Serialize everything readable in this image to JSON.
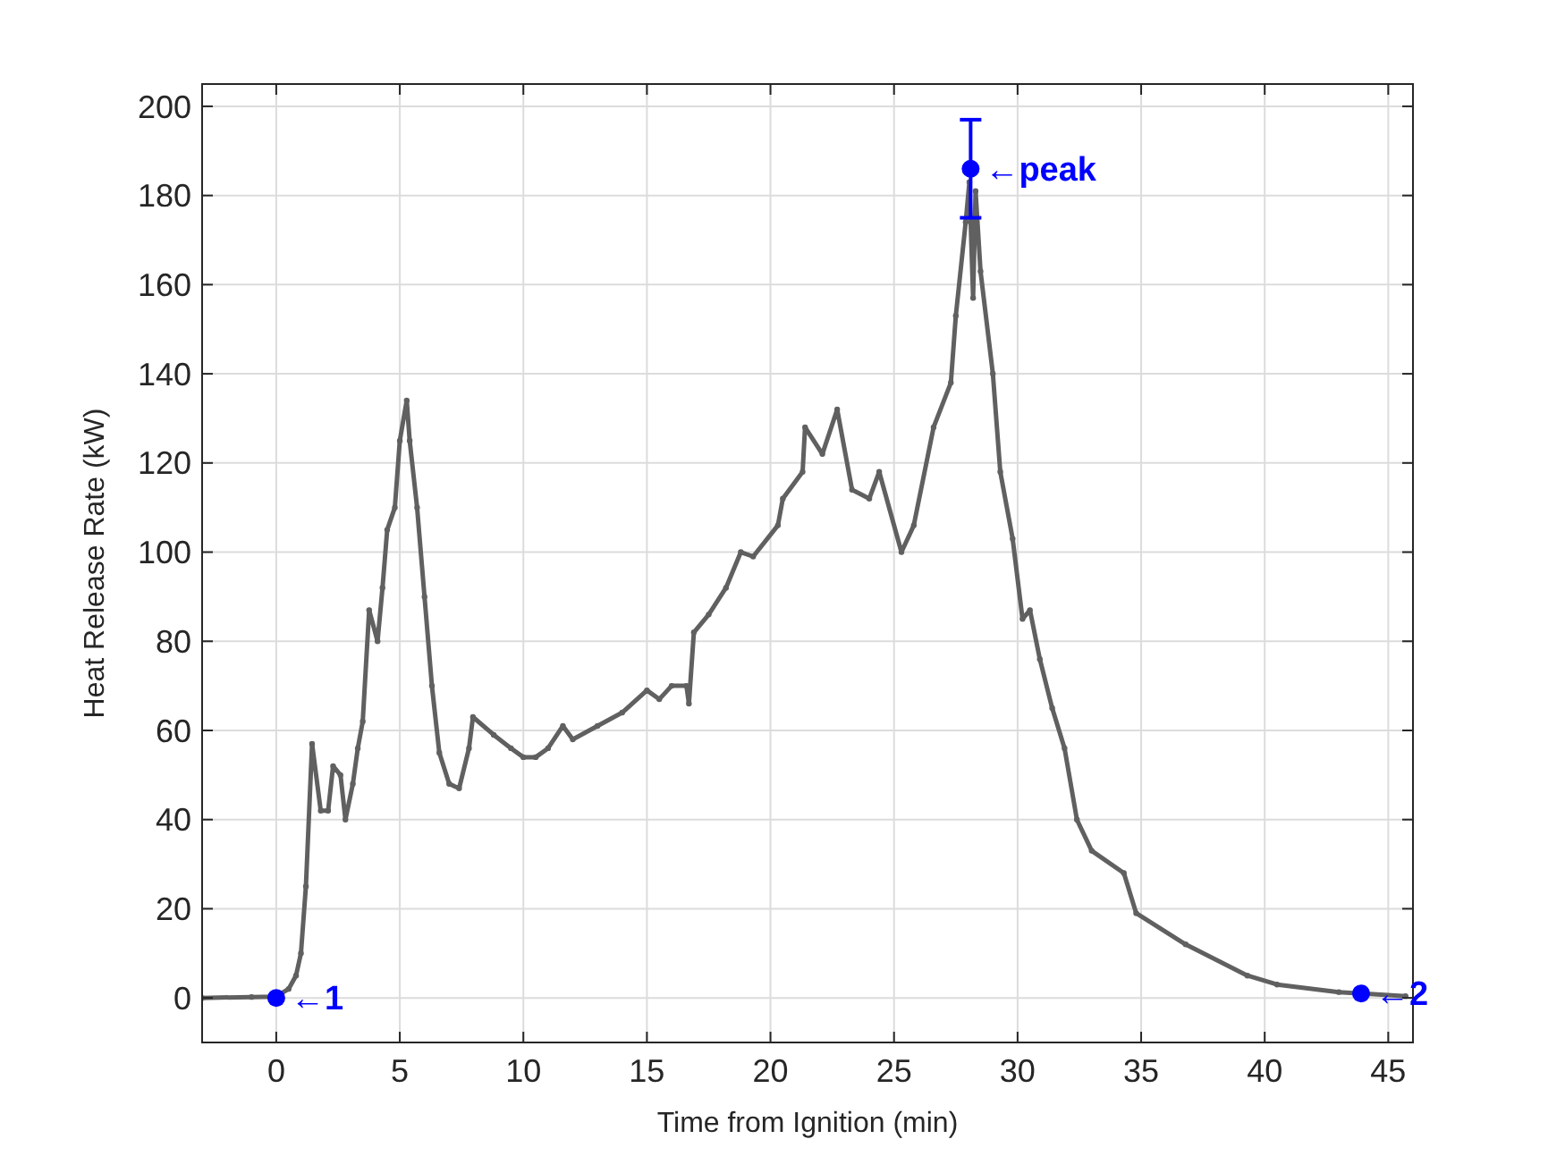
{
  "chart_data": {
    "type": "line",
    "xlabel": "Time from Ignition (min)",
    "ylabel": "Heat Release Rate (kW)",
    "xlim": [
      -3,
      46
    ],
    "ylim": [
      -10,
      205
    ],
    "xticks": [
      0,
      5,
      10,
      15,
      20,
      25,
      30,
      35,
      40,
      45
    ],
    "yticks": [
      0,
      20,
      40,
      60,
      80,
      100,
      120,
      140,
      160,
      180,
      200
    ],
    "grid": true,
    "marker": "circle",
    "line_style": "solid",
    "series": [
      {
        "color": "#606060",
        "x": [
          -3,
          -1,
          0,
          0.5,
          0.8,
          1.0,
          1.2,
          1.45,
          1.8,
          2.1,
          2.3,
          2.6,
          2.8,
          3.1,
          3.3,
          3.5,
          3.76,
          4.1,
          4.3,
          4.49,
          4.8,
          5.0,
          5.28,
          5.4,
          5.7,
          6.0,
          6.3,
          6.6,
          7.0,
          7.4,
          7.8,
          7.96,
          8.8,
          9.5,
          10,
          10.5,
          11,
          11.6,
          12,
          13,
          14,
          15,
          15.5,
          16,
          16.6,
          16.7,
          16.9,
          17.5,
          18.2,
          18.8,
          19.3,
          20.3,
          20.5,
          21.3,
          21.4,
          22.1,
          22.7,
          23.3,
          24.0,
          24.4,
          25.3,
          25.8,
          26.6,
          27.3,
          27.5,
          27.9,
          28.05,
          28.2,
          28.3,
          28.5,
          29.0,
          29.3,
          29.8,
          30.2,
          30.5,
          30.9,
          31.4,
          31.9,
          32.4,
          33.0,
          34.3,
          34.8,
          36.8,
          39.3,
          40.5,
          43.0,
          45.7
        ],
        "values": [
          0,
          0.2,
          0.3,
          2,
          5,
          10,
          25,
          57,
          42,
          42,
          52,
          50,
          40,
          48,
          56,
          62,
          87,
          80,
          92,
          105,
          110,
          125,
          134,
          125,
          110,
          90,
          70,
          55,
          48,
          47,
          56,
          63,
          59,
          56,
          54,
          54,
          56,
          61,
          58,
          61,
          64,
          69,
          67,
          70,
          70,
          66,
          82,
          86,
          92,
          100,
          99,
          106,
          112,
          118,
          128,
          122,
          132,
          114,
          112,
          118,
          100,
          106,
          128,
          138,
          153,
          174,
          183,
          157,
          181,
          163,
          140,
          118,
          103,
          85,
          87,
          76,
          65,
          56,
          40,
          33,
          28,
          19,
          12,
          5,
          3,
          1.3,
          0.4
        ]
      },
      {
        "type": "scatter",
        "color": "#0000ff",
        "x": [
          0,
          28.1,
          43.9
        ],
        "values": [
          0,
          186,
          1
        ],
        "errors": [
          null,
          [
            175,
            197
          ],
          null
        ]
      }
    ],
    "annotations": [
      {
        "text": "←1",
        "x": 0,
        "y": 0
      },
      {
        "text": "←peak",
        "x": 28.1,
        "y": 186
      },
      {
        "text": "←2",
        "x": 43.9,
        "y": 1
      }
    ]
  }
}
